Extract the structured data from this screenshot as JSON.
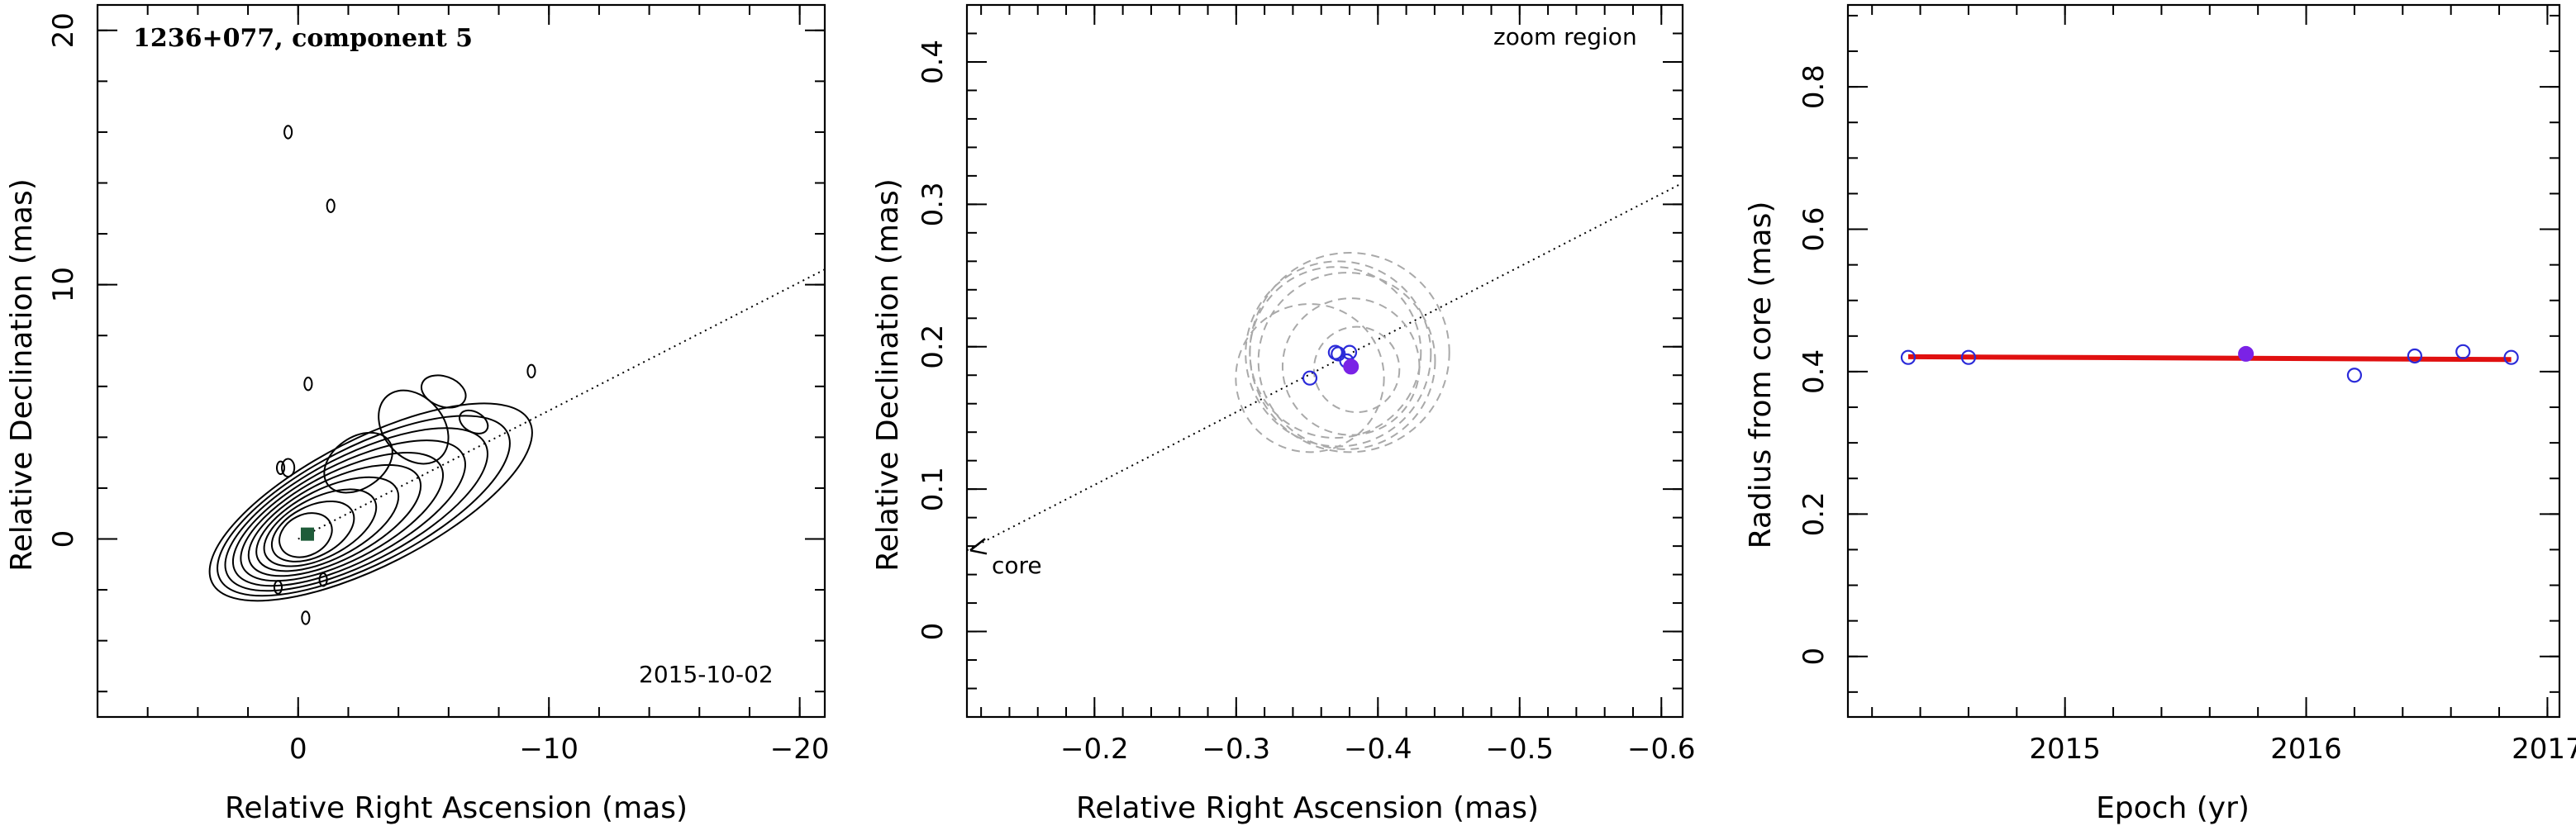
{
  "chart_data": [
    {
      "type": "contour",
      "title": "1236+077, component 5",
      "xlabel": "Relative Right Ascension (mas)",
      "ylabel": "Relative Declination (mas)",
      "xlim": [
        8,
        -21
      ],
      "ylim": [
        -7,
        21
      ],
      "xticks": [
        0,
        -10,
        -20
      ],
      "yticks": [
        0,
        10,
        20
      ],
      "annotation": "2015-10-02",
      "component_position": {
        "x": -0.37,
        "y": 0.19
      },
      "jet_direction": {
        "from": [
          0,
          0
        ],
        "to": [
          -21,
          10.6
        ]
      },
      "contour_color": "#000000",
      "component_color": "#1f5c3a",
      "levels": 10
    },
    {
      "type": "scatter",
      "xlabel": "Relative Right Ascension (mas)",
      "ylabel": "Relative Declination (mas)",
      "xlim": [
        -0.11,
        -0.615
      ],
      "ylim": [
        -0.06,
        0.44
      ],
      "xticks": [
        -0.2,
        -0.3,
        -0.4,
        -0.5,
        -0.6
      ],
      "yticks": [
        0,
        0.1,
        0.2,
        0.3,
        0.4
      ],
      "annotations": [
        "zoom region",
        "core"
      ],
      "core_line": {
        "from": [
          -0.11,
          0.057
        ],
        "to": [
          -0.615,
          0.315
        ]
      },
      "open_points": [
        {
          "x": -0.352,
          "y": 0.178
        },
        {
          "x": -0.37,
          "y": 0.196
        },
        {
          "x": -0.372,
          "y": 0.195
        },
        {
          "x": -0.38,
          "y": 0.196
        },
        {
          "x": -0.378,
          "y": 0.19
        }
      ],
      "filled_points": [
        {
          "x": -0.381,
          "y": 0.186
        }
      ],
      "error_circles": [
        {
          "x": -0.352,
          "y": 0.178,
          "r": 0.052
        },
        {
          "x": -0.37,
          "y": 0.196,
          "r": 0.06
        },
        {
          "x": -0.372,
          "y": 0.195,
          "r": 0.065
        },
        {
          "x": -0.38,
          "y": 0.196,
          "r": 0.07
        },
        {
          "x": -0.378,
          "y": 0.19,
          "r": 0.062
        },
        {
          "x": -0.381,
          "y": 0.186,
          "r": 0.048
        },
        {
          "x": -0.385,
          "y": 0.184,
          "r": 0.03
        }
      ],
      "open_color": "#2b2bd9",
      "filled_color": "#7a22e6",
      "circle_color": "#a9a9a9"
    },
    {
      "type": "scatter",
      "xlabel": "Epoch (yr)",
      "ylabel": "Radius from core (mas)",
      "xlim": [
        2014.1,
        2017.05
      ],
      "ylim": [
        -0.085,
        0.915
      ],
      "xticks": [
        2015,
        2016,
        2017
      ],
      "yticks": [
        0,
        0.2,
        0.4,
        0.6,
        0.8
      ],
      "points": [
        {
          "x": 2014.35,
          "y": 0.42
        },
        {
          "x": 2014.6,
          "y": 0.42
        },
        {
          "x": 2016.2,
          "y": 0.395
        },
        {
          "x": 2016.45,
          "y": 0.422
        },
        {
          "x": 2016.65,
          "y": 0.428
        },
        {
          "x": 2016.85,
          "y": 0.42
        }
      ],
      "filled_point": {
        "x": 2015.75,
        "y": 0.425
      },
      "fit_line": {
        "from": [
          2014.35,
          0.421
        ],
        "to": [
          2016.85,
          0.417
        ]
      },
      "point_color": "#2b2bd9",
      "filled_color": "#7a22e6",
      "fit_color": "#e01010"
    }
  ]
}
